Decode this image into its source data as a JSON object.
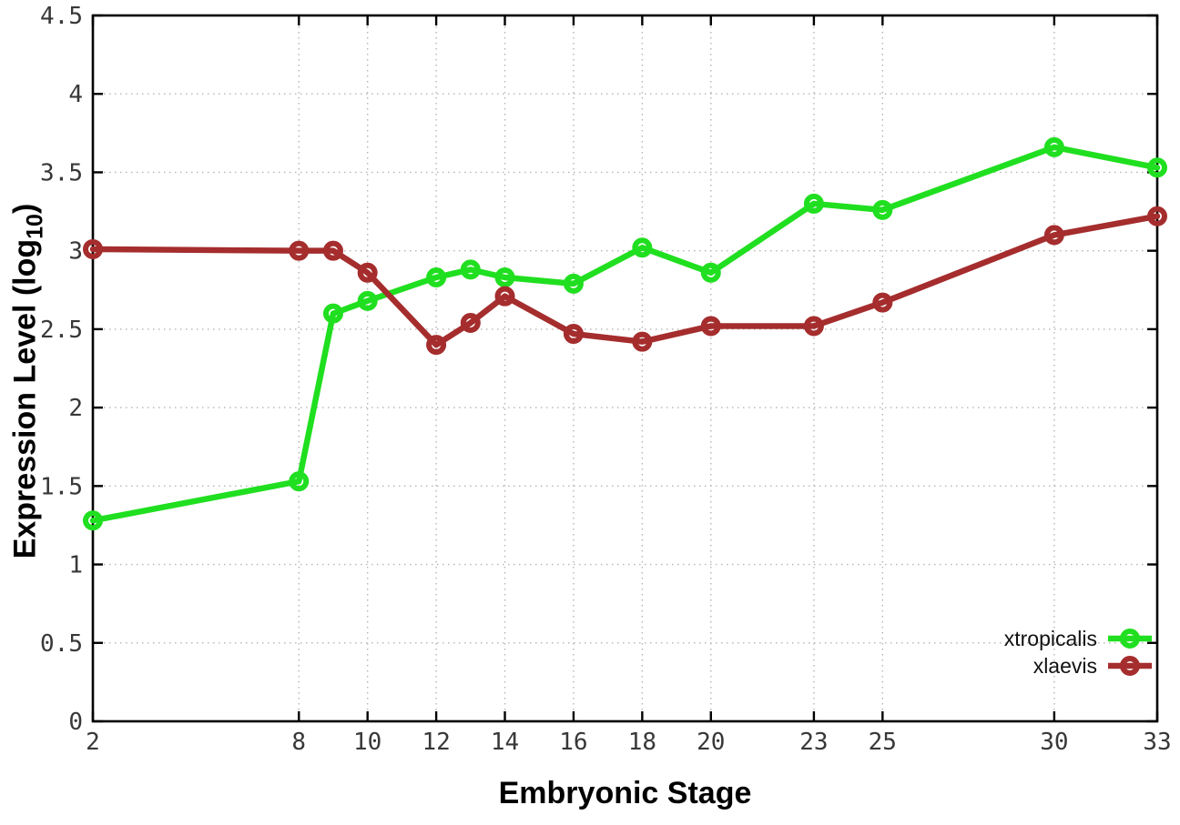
{
  "chart_data": {
    "type": "line",
    "title": "",
    "xlabel": "Embryonic Stage",
    "ylabel": "Expression Level (log10)",
    "x": [
      2,
      8,
      9,
      10,
      12,
      13,
      14,
      16,
      18,
      20,
      23,
      25,
      30,
      33
    ],
    "series": [
      {
        "name": "xtropicalis",
        "color": "#20df20",
        "values": [
          1.28,
          1.53,
          2.6,
          2.68,
          2.83,
          2.88,
          2.83,
          2.79,
          3.02,
          2.86,
          3.3,
          3.26,
          3.66,
          3.53
        ]
      },
      {
        "name": "xlaevis",
        "color": "#a52d2d",
        "values": [
          3.01,
          3.0,
          3.0,
          2.86,
          2.4,
          2.54,
          2.71,
          2.47,
          2.42,
          2.52,
          2.52,
          2.67,
          3.1,
          3.22
        ]
      }
    ],
    "xlim": [
      2,
      33
    ],
    "ylim": [
      0,
      4.5
    ],
    "xticks": [
      2,
      8,
      10,
      12,
      14,
      16,
      18,
      20,
      23,
      25,
      30,
      33
    ],
    "xtick_labels": [
      "2",
      "8",
      "10",
      "12",
      "14",
      "16",
      "18",
      "20",
      "23",
      "25",
      "30",
      "33"
    ],
    "yticks": [
      0,
      0.5,
      1,
      1.5,
      2,
      2.5,
      3,
      3.5,
      4,
      4.5
    ],
    "ytick_labels": [
      "0",
      "0.5",
      "1",
      "1.5",
      "2",
      "2.5",
      "3",
      "3.5",
      "4",
      "4.5"
    ],
    "grid": true,
    "legend_position": "bottom-right"
  },
  "axes": {
    "x_title": "Embryonic Stage",
    "y_title_main": "Expression Level (log",
    "y_title_sub": "10",
    "y_title_close": ")"
  },
  "legend": {
    "items": [
      {
        "label": "xtropicalis"
      },
      {
        "label": "xlaevis"
      }
    ]
  }
}
